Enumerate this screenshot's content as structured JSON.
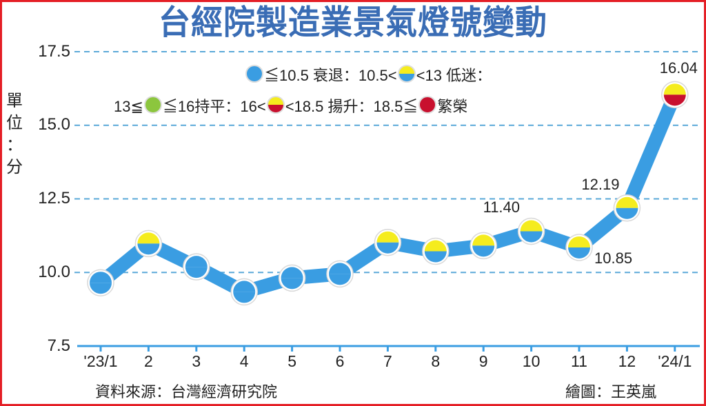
{
  "title": "台經院製造業景氣燈號變動",
  "unit_label": [
    "單",
    "位",
    "：",
    "分"
  ],
  "source": "資料來源：台灣經濟研究院",
  "credit": "繪圖：王英嵐",
  "colors": {
    "line": "#3a9de2",
    "blue": "#3a9de2",
    "yellow": "#f5ec1e",
    "green": "#8cc63e",
    "red": "#c8102e",
    "grid": "#5aa8d8",
    "title": "#3a6db5",
    "frame": "#e41e25"
  },
  "legend": {
    "line1": {
      "blue_text": "≦10.5 衰退：10.5<",
      "yb_text": "<13 低迷："
    },
    "line2": {
      "green_pre": "13≦",
      "green_post": "≦16持平：16<",
      "yr_post": "<18.5 揚升：18.5≦",
      "red_post": "繁榮"
    }
  },
  "chart_data": {
    "type": "line",
    "title": "台經院製造業景氣燈號變動",
    "xlabel": "",
    "ylabel": "單位：分",
    "categories": [
      "'23/1",
      "2",
      "3",
      "4",
      "5",
      "6",
      "7",
      "8",
      "9",
      "10",
      "11",
      "12",
      "'24/1"
    ],
    "values": [
      9.65,
      10.98,
      10.19,
      9.34,
      9.81,
      9.95,
      11.02,
      10.72,
      10.91,
      11.4,
      10.85,
      12.19,
      16.04
    ],
    "signals": [
      "blue",
      "yellow-blue",
      "blue",
      "blue",
      "blue",
      "blue",
      "yellow-blue",
      "yellow-blue",
      "yellow-blue",
      "yellow-blue",
      "yellow-blue",
      "yellow-blue",
      "yellow-red"
    ],
    "data_labels": [
      {
        "index": 9,
        "text": "11.40"
      },
      {
        "index": 10,
        "text": "10.85"
      },
      {
        "index": 11,
        "text": "12.19"
      },
      {
        "index": 12,
        "text": "16.04"
      }
    ],
    "yticks": [
      "17.5",
      "15.0",
      "12.5",
      "10.0",
      "7.5"
    ],
    "ylim": [
      7.5,
      17.5
    ],
    "grid": true,
    "legend_position": "top-inside",
    "legend_entries": [
      {
        "signal": "blue",
        "range": "≦10.5",
        "label": "衰退"
      },
      {
        "signal": "yellow-blue",
        "range": "10.5<x<13",
        "label": "低迷"
      },
      {
        "signal": "green",
        "range": "13≦x≦16",
        "label": "持平"
      },
      {
        "signal": "yellow-red",
        "range": "16<x<18.5",
        "label": "揚升"
      },
      {
        "signal": "red",
        "range": "18.5≦",
        "label": "繁榮"
      }
    ]
  }
}
